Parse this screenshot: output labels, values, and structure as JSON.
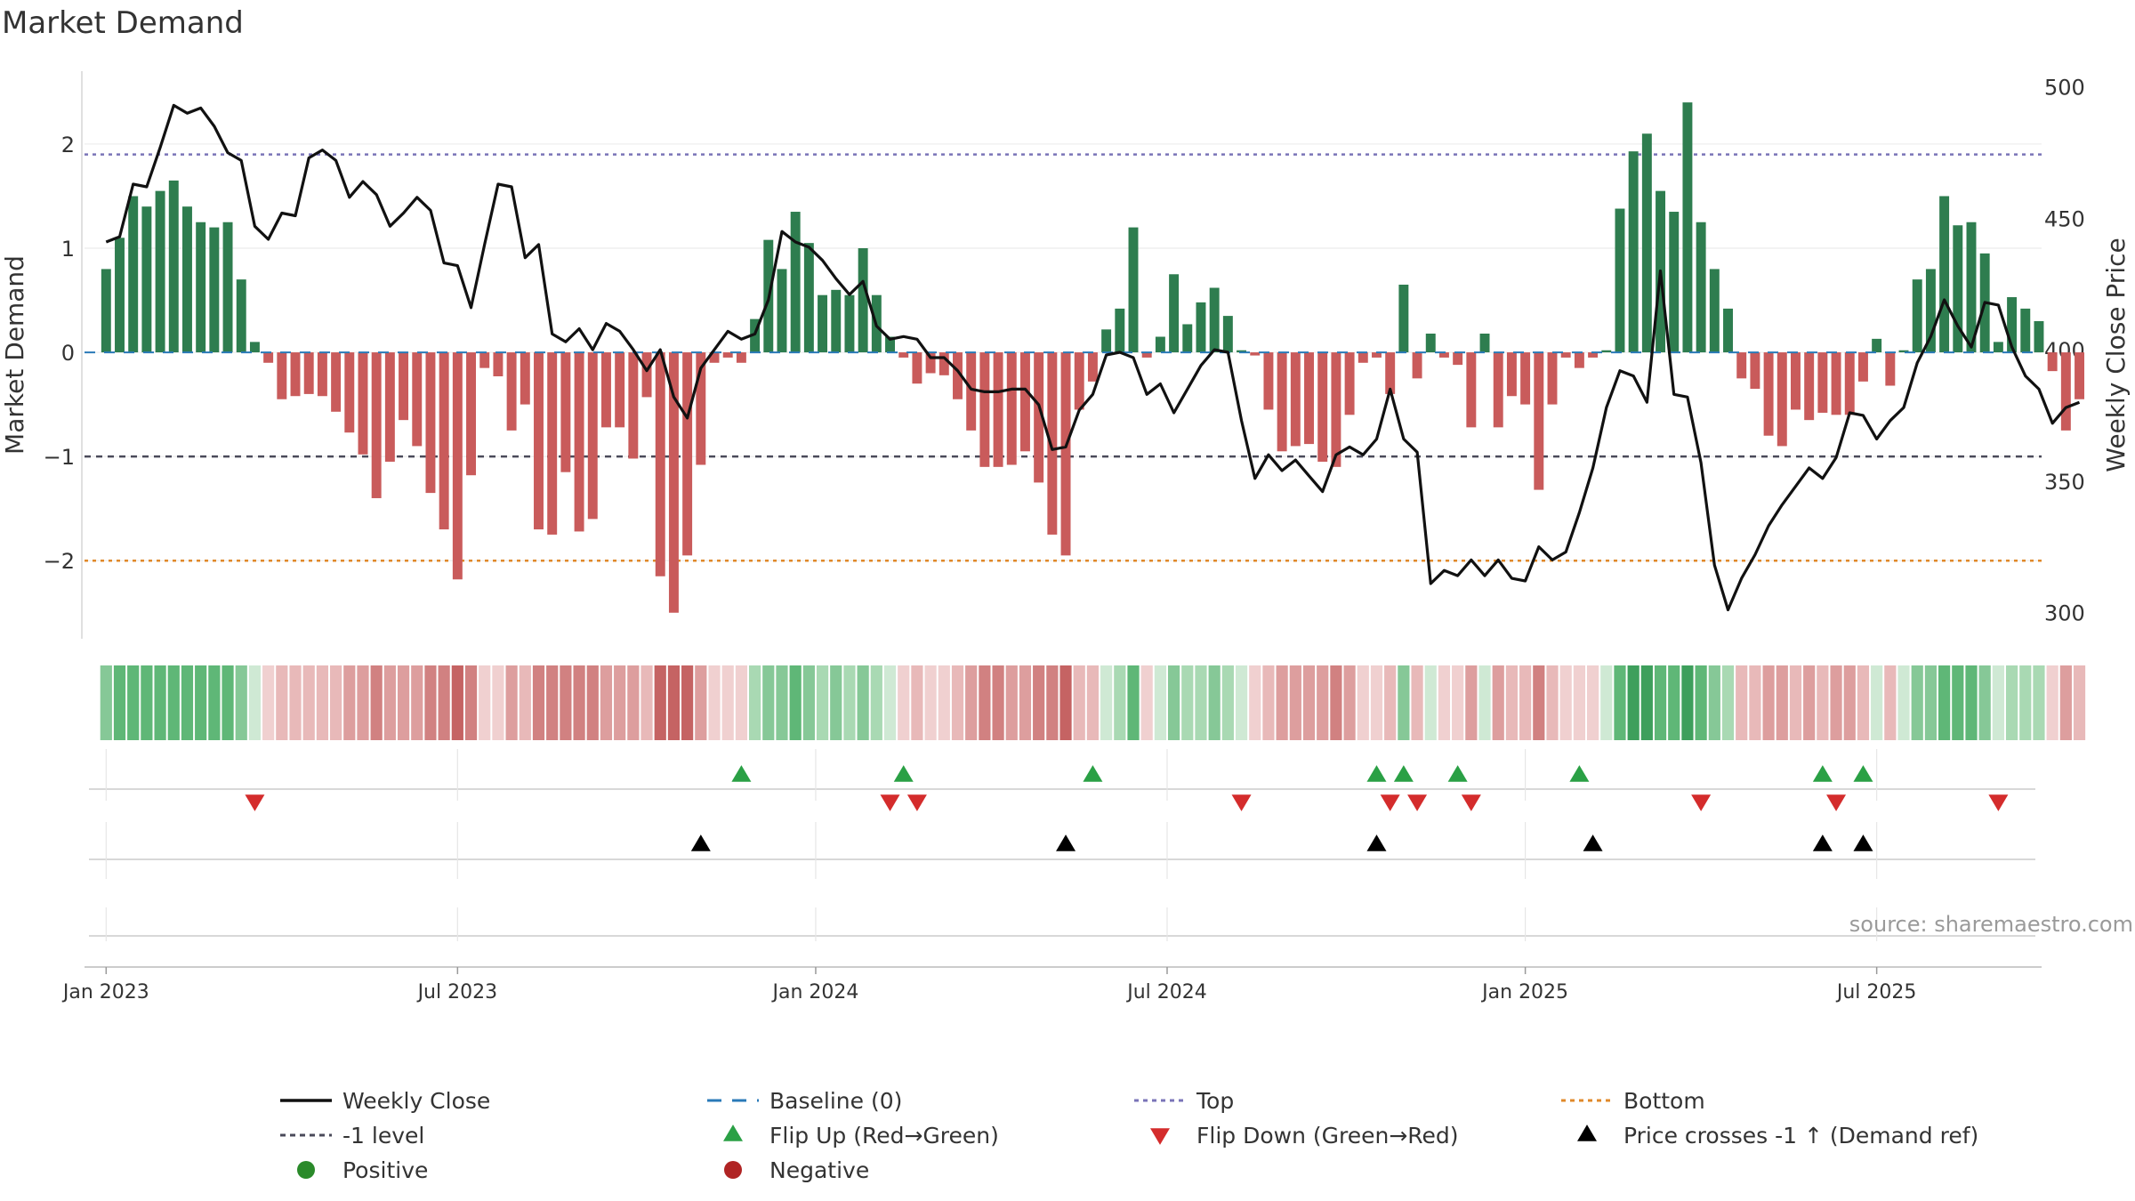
{
  "chart_data": {
    "type": "bar",
    "title": "Market Demand",
    "ylabel": "Market Demand",
    "y2label": "Weekly Close Price",
    "ylim": [
      -2.75,
      2.7
    ],
    "y2lim": [
      290,
      506
    ],
    "yticks": [
      2,
      1,
      0,
      -1,
      -2
    ],
    "ytick_labels": [
      "2",
      "1",
      "0",
      "−1",
      "−2"
    ],
    "y2ticks": [
      500,
      450,
      400,
      350,
      300
    ],
    "y2tick_labels": [
      "500",
      "450",
      "400",
      "350",
      "300"
    ],
    "xlim": [
      -1.6,
      143.2
    ],
    "xticks": [
      0,
      26,
      52.5,
      78.5,
      105,
      131
    ],
    "xtick_labels": [
      "Jan 2023",
      "Jul 2023",
      "Jan 2024",
      "Jul 2024",
      "Jan 2025",
      "Jul 2025"
    ],
    "reference_lines": [
      {
        "name": "Top",
        "value": 1.9,
        "color": "#7a74b8",
        "style": "dotted"
      },
      {
        "name": "-1 level",
        "value": -1.0,
        "color": "#4a4a5a",
        "style": "dashed"
      },
      {
        "name": "Bottom",
        "value": -2.0,
        "color": "#e0892a",
        "style": "dotted"
      },
      {
        "name": "Baseline (0)",
        "value": 0,
        "color": "#2a7ab8",
        "style": "dashed"
      }
    ],
    "demand": [
      0.8,
      1.1,
      1.5,
      1.4,
      1.55,
      1.65,
      1.4,
      1.25,
      1.2,
      1.25,
      0.7,
      0.1,
      -0.1,
      -0.45,
      -0.42,
      -0.4,
      -0.42,
      -0.57,
      -0.77,
      -0.98,
      -1.4,
      -1.05,
      -0.65,
      -0.9,
      -1.35,
      -1.7,
      -2.18,
      -1.18,
      -0.15,
      -0.23,
      -0.75,
      -0.5,
      -1.7,
      -1.75,
      -1.15,
      -1.72,
      -1.6,
      -0.72,
      -0.72,
      -1.02,
      -0.43,
      -2.15,
      -2.5,
      -1.95,
      -1.08,
      -0.1,
      -0.05,
      -0.1,
      0.32,
      1.08,
      0.8,
      1.35,
      1.05,
      0.55,
      0.6,
      0.55,
      1.0,
      0.55,
      0.15,
      -0.05,
      -0.3,
      -0.2,
      -0.22,
      -0.45,
      -0.75,
      -1.1,
      -1.1,
      -1.08,
      -0.95,
      -1.25,
      -1.75,
      -1.95,
      -0.55,
      -0.28,
      0.22,
      0.42,
      1.2,
      -0.05,
      0.15,
      0.75,
      0.27,
      0.48,
      0.62,
      0.35,
      0.02,
      -0.03,
      -0.55,
      -0.95,
      -0.9,
      -0.88,
      -1.05,
      -1.1,
      -0.6,
      -0.1,
      -0.05,
      -0.4,
      0.65,
      -0.25,
      0.18,
      -0.05,
      -0.12,
      -0.72,
      0.18,
      -0.72,
      -0.42,
      -0.5,
      -1.32,
      -0.5,
      -0.05,
      -0.15,
      -0.05,
      0.02,
      1.38,
      1.93,
      2.1,
      1.55,
      1.35,
      2.4,
      1.25,
      0.8,
      0.42,
      -0.25,
      -0.35,
      -0.8,
      -0.9,
      -0.55,
      -0.65,
      -0.58,
      -0.6,
      -0.6,
      -0.28,
      0.13,
      -0.32,
      0.02,
      0.7,
      0.8,
      1.5,
      1.22,
      1.25,
      0.95,
      0.1,
      0.53,
      0.42,
      0.3,
      -0.18,
      -0.75,
      -0.45
    ],
    "weekly_close": [
      441,
      443,
      463,
      462,
      477,
      493,
      490,
      492,
      485,
      475,
      472,
      447,
      442,
      452,
      451,
      473,
      476,
      472,
      458,
      464,
      459,
      447,
      452,
      458,
      453,
      433,
      432,
      416,
      440,
      463,
      462,
      435,
      440,
      406,
      403,
      408,
      400,
      410,
      407,
      400,
      392,
      400,
      382,
      374,
      393,
      400,
      407,
      404,
      406,
      419,
      445,
      441,
      439,
      434,
      427,
      421,
      426,
      409,
      404,
      405,
      404,
      397,
      397,
      392,
      385,
      384,
      384,
      385,
      385,
      379,
      362,
      363,
      377,
      383,
      398,
      399,
      397,
      383,
      387,
      376,
      385,
      394,
      400,
      399,
      373,
      351,
      360,
      354,
      358,
      352,
      346,
      360,
      363,
      360,
      366,
      385,
      366,
      361,
      311,
      316,
      314,
      320,
      314,
      320,
      313,
      312,
      325,
      320,
      323,
      338,
      355,
      378,
      392,
      390,
      380,
      430,
      383,
      382,
      357,
      318,
      301,
      313,
      322,
      333,
      341,
      348,
      355,
      351,
      359,
      376,
      375,
      366,
      373,
      378,
      395,
      405,
      419,
      409,
      401,
      418,
      417,
      401,
      390,
      385,
      372,
      378,
      380
    ],
    "flip_up": [
      47,
      59,
      73,
      94,
      96,
      100,
      109,
      127,
      130
    ],
    "flip_down": [
      11,
      58,
      60,
      84,
      95,
      97,
      101,
      118,
      128,
      140
    ],
    "price_crosses": [
      44,
      71,
      94,
      110,
      127,
      130
    ]
  },
  "legend": {
    "weekly_close": "Weekly Close",
    "baseline": "Baseline (0)",
    "top": "Top",
    "bottom": "Bottom",
    "minus1": "-1 level",
    "flip_up": "Flip Up (Red→Green)",
    "flip_down": "Flip Down (Green→Red)",
    "price_cross": "Price crosses -1 ↑ (Demand ref)",
    "positive": "Positive",
    "negative": "Negative"
  },
  "source": "source: sharemaestro.com",
  "colors": {
    "positive_bar": "#2e7d4f",
    "negative_bar": "#c95b5b",
    "line": "#111111",
    "flip_up": "#2aa045",
    "flip_down": "#d42c2c",
    "positive_dot": "#2a8a2a",
    "negative_dot": "#b02424"
  }
}
